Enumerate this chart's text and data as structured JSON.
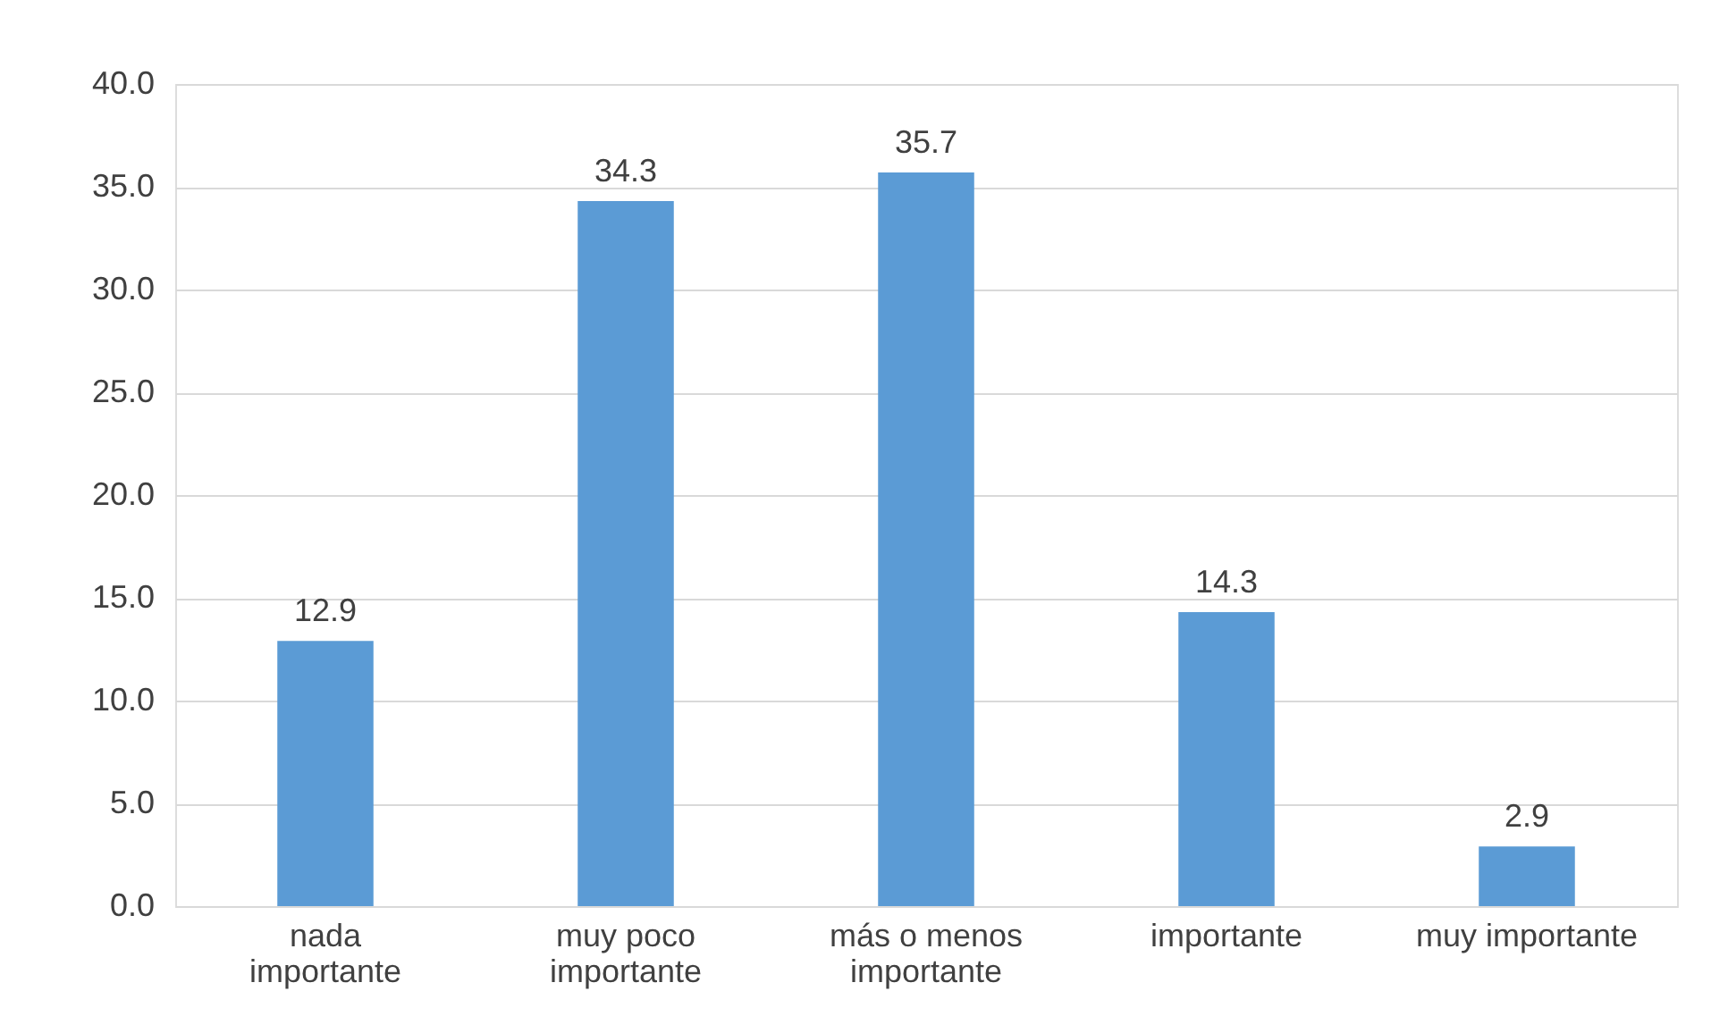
{
  "chart_data": {
    "type": "bar",
    "categories": [
      "nada importante",
      "muy poco importante",
      "más o menos importante",
      "importante",
      "muy importante"
    ],
    "values": [
      12.9,
      34.3,
      35.7,
      14.3,
      2.9
    ],
    "color": "#5b9bd5",
    "ylim": [
      0,
      40
    ],
    "yticks": [
      {
        "value": 0,
        "label": "0.0"
      },
      {
        "value": 5,
        "label": "5.0"
      },
      {
        "value": 10,
        "label": "10.0"
      },
      {
        "value": 15,
        "label": "15.0"
      },
      {
        "value": 20,
        "label": "20.0"
      },
      {
        "value": 25,
        "label": "25.0"
      },
      {
        "value": 30,
        "label": "30.0"
      },
      {
        "value": 35,
        "label": "35.0"
      },
      {
        "value": 40,
        "label": "40.0"
      }
    ],
    "grid": "y",
    "data_labels": true
  }
}
